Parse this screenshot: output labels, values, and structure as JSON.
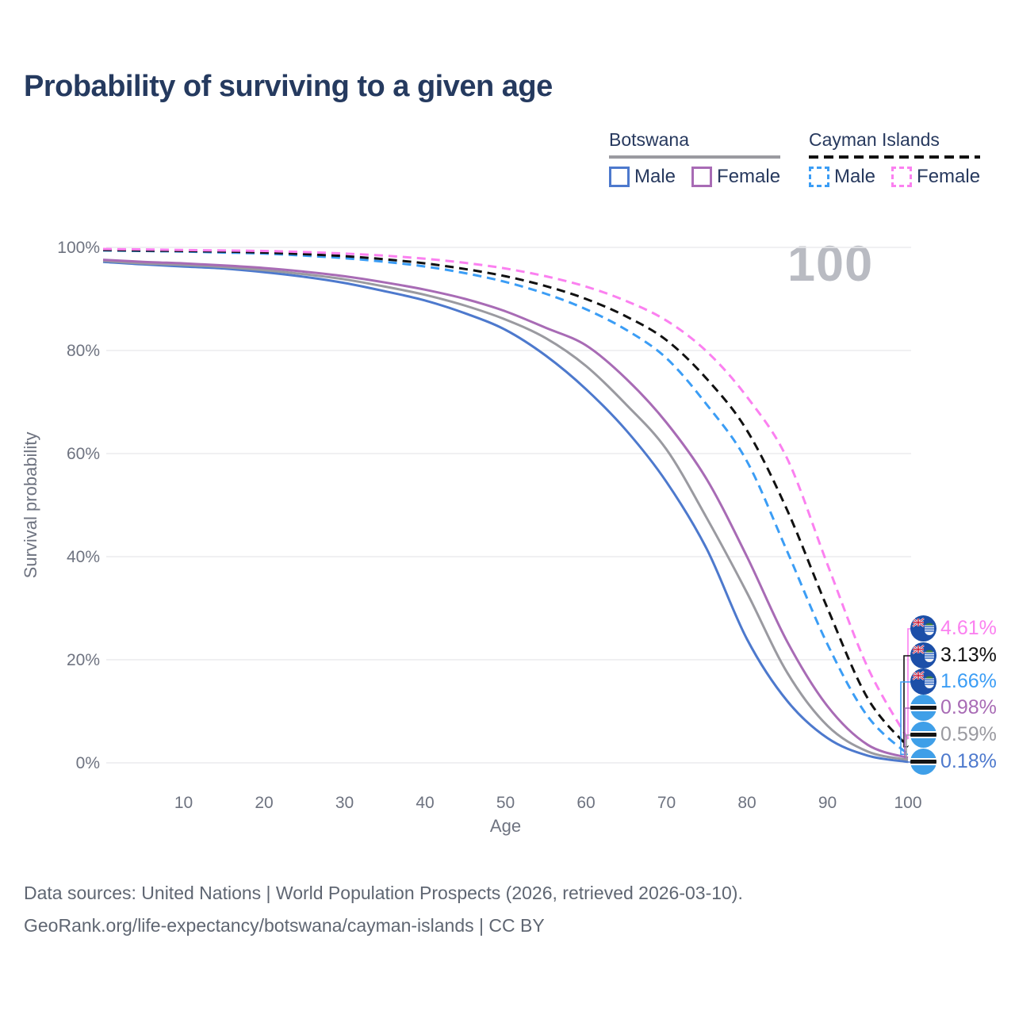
{
  "header": {
    "title": "Probability of surviving to a given age",
    "title_color": "#253a5f"
  },
  "watermark": {
    "text": "100",
    "color": "#b9bbc2"
  },
  "legend": {
    "groups": [
      {
        "name": "Botswana",
        "line_style": "solid",
        "underline_color": "#9a9aa0",
        "items": [
          {
            "label": "Male",
            "color": "#4d79cd"
          },
          {
            "label": "Female",
            "color": "#a86bb5"
          }
        ]
      },
      {
        "name": "Cayman Islands",
        "line_style": "dashed",
        "underline_color": "#111111",
        "items": [
          {
            "label": "Male",
            "color": "#3b9df5"
          },
          {
            "label": "Female",
            "color": "#fb80f0"
          }
        ]
      }
    ]
  },
  "chart_data": {
    "type": "line",
    "title": "Probability of surviving to a given age",
    "xlabel": "Age",
    "ylabel": "Survival probability",
    "xlim": [
      0,
      100
    ],
    "ylim": [
      0,
      100
    ],
    "x_ticks": [
      10,
      20,
      30,
      40,
      50,
      60,
      70,
      80,
      90,
      100
    ],
    "y_ticks": [
      {
        "value": 0,
        "label": "0%"
      },
      {
        "value": 20,
        "label": "20%"
      },
      {
        "value": 40,
        "label": "40%"
      },
      {
        "value": 60,
        "label": "60%"
      },
      {
        "value": 80,
        "label": "80%"
      },
      {
        "value": 100,
        "label": "100%"
      }
    ],
    "grid": "horizontal-only",
    "legend_position": "top-right",
    "ages": [
      0,
      5,
      10,
      15,
      20,
      25,
      30,
      35,
      40,
      45,
      50,
      55,
      60,
      65,
      70,
      75,
      80,
      85,
      90,
      95,
      100
    ],
    "series": [
      {
        "name": "Botswana Male",
        "country": "Botswana",
        "sex": "Male",
        "flag": "botswana",
        "color": "#4d79cd",
        "dashed": false,
        "end_label": "0.18%",
        "values": [
          97.2,
          96.7,
          96.3,
          95.9,
          95.2,
          94.3,
          93.1,
          91.5,
          89.7,
          87.2,
          84.0,
          79.0,
          72.5,
          64.5,
          54.5,
          41.5,
          24.0,
          12.0,
          4.8,
          1.4,
          0.18
        ]
      },
      {
        "name": "Botswana Both sexes",
        "country": "Botswana",
        "sex": "Both",
        "flag": "botswana",
        "color": "#9a9aa0",
        "dashed": false,
        "end_label": "0.59%",
        "values": [
          97.4,
          96.9,
          96.6,
          96.2,
          95.6,
          94.8,
          93.8,
          92.4,
          90.8,
          88.7,
          86.0,
          82.4,
          77.0,
          69.5,
          60.8,
          47.5,
          33.0,
          17.5,
          7.2,
          2.2,
          0.59
        ]
      },
      {
        "name": "Botswana Female",
        "country": "Botswana",
        "sex": "Female",
        "flag": "botswana",
        "color": "#a86bb5",
        "dashed": false,
        "end_label": "0.98%",
        "values": [
          97.6,
          97.2,
          96.9,
          96.5,
          96.0,
          95.3,
          94.4,
          93.2,
          91.8,
          90.0,
          87.6,
          84.4,
          81.0,
          74.5,
          66.0,
          55.0,
          40.0,
          23.5,
          11.0,
          3.5,
          0.98
        ]
      },
      {
        "name": "Cayman Islands Male",
        "country": "Cayman Islands",
        "sex": "Male",
        "flag": "cayman",
        "color": "#3b9df5",
        "dashed": true,
        "end_label": "1.66%",
        "values": [
          99.4,
          99.3,
          99.2,
          99.0,
          98.8,
          98.4,
          97.9,
          97.2,
          96.3,
          95.0,
          93.3,
          91.0,
          88.0,
          84.0,
          78.5,
          69.5,
          58.5,
          41.0,
          23.0,
          9.0,
          1.66
        ]
      },
      {
        "name": "Cayman Islands Both sexes",
        "country": "Cayman Islands",
        "sex": "Both",
        "flag": "cayman",
        "color": "#111111",
        "dashed": true,
        "end_label": "3.13%",
        "values": [
          99.5,
          99.4,
          99.3,
          99.2,
          99.0,
          98.7,
          98.3,
          97.7,
          96.9,
          95.8,
          94.4,
          92.5,
          90.0,
          86.6,
          82.0,
          74.5,
          64.5,
          49.0,
          30.0,
          12.5,
          3.13
        ]
      },
      {
        "name": "Cayman Islands Female",
        "country": "Cayman Islands",
        "sex": "Female",
        "flag": "cayman",
        "color": "#fb80f0",
        "dashed": true,
        "end_label": "4.61%",
        "values": [
          99.7,
          99.6,
          99.5,
          99.4,
          99.3,
          99.1,
          98.8,
          98.4,
          97.8,
          97.0,
          95.9,
          94.4,
          92.4,
          89.6,
          85.8,
          79.8,
          71.0,
          59.0,
          38.5,
          18.5,
          4.61
        ]
      }
    ],
    "end_label_annotation": "100"
  },
  "source": {
    "line1": "Data sources: United Nations | World Population Prospects (2026, retrieved 2026-03-10).",
    "line2": "GeoRank.org/life-expectancy/botswana/cayman-islands | CC BY"
  }
}
